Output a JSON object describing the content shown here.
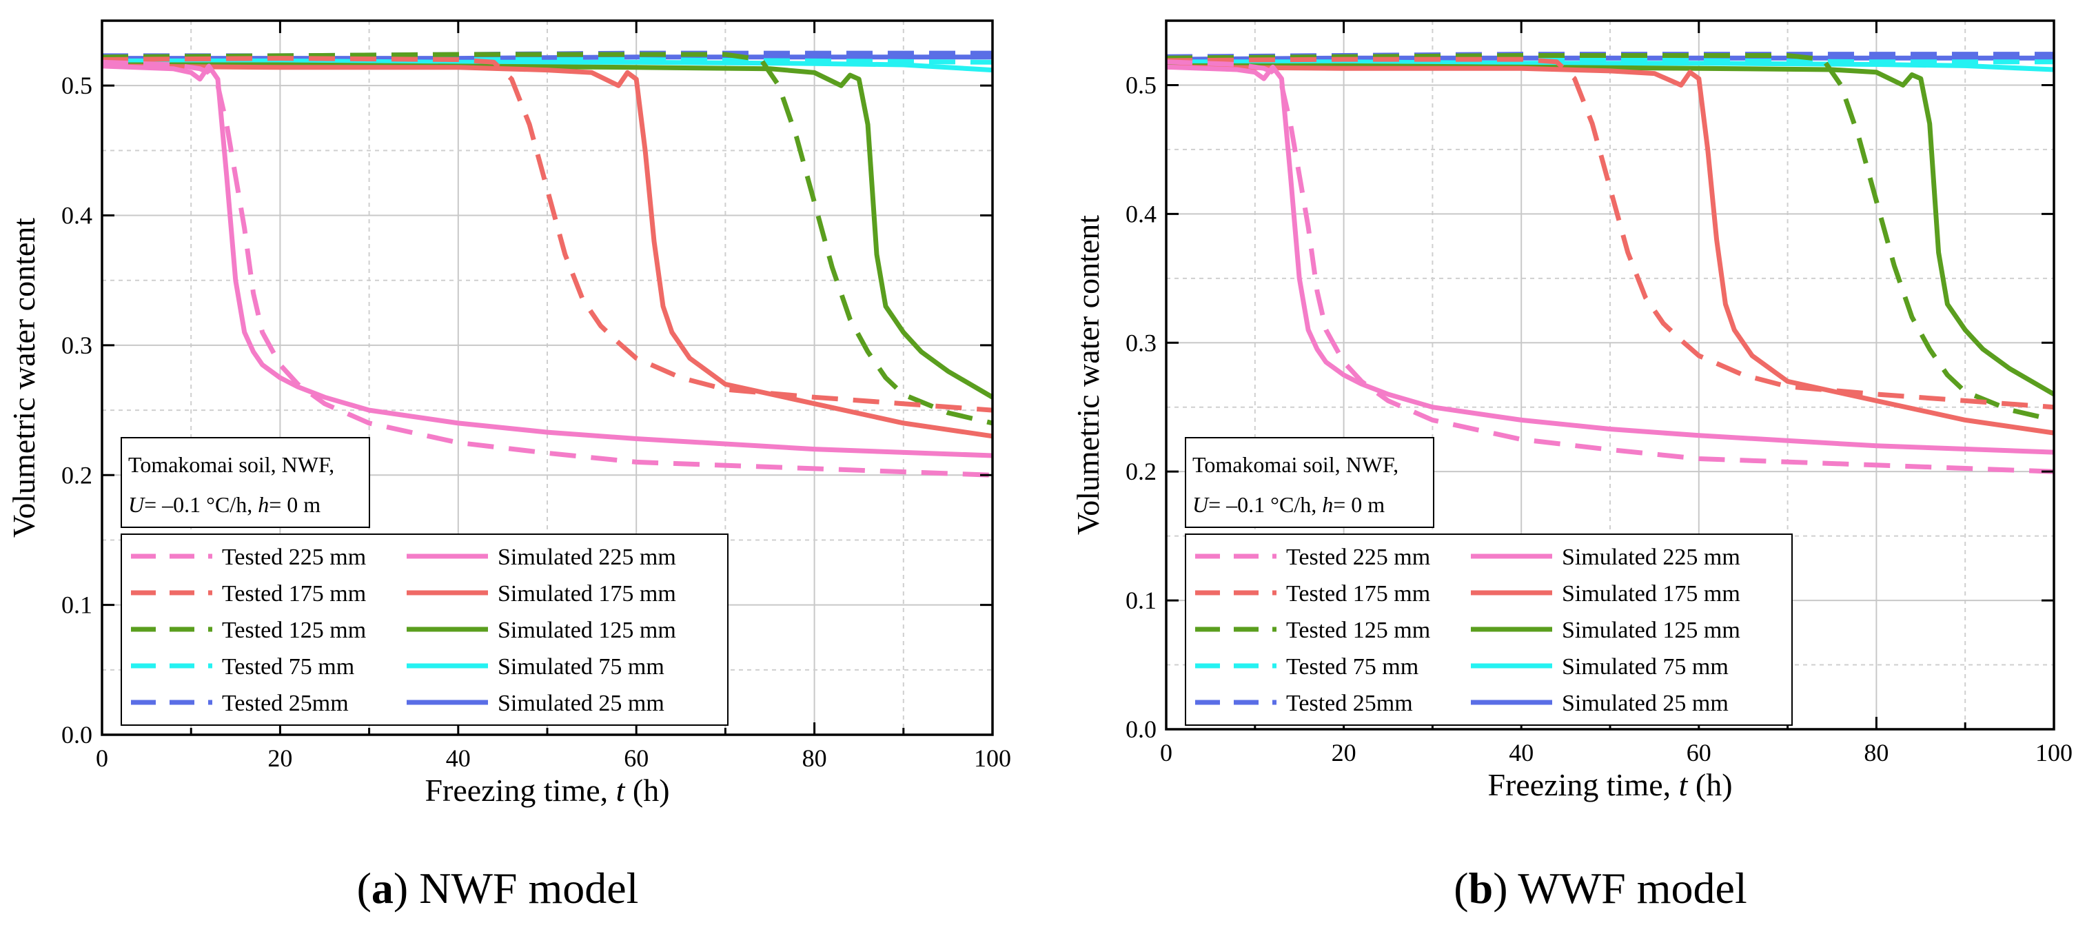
{
  "colors": {
    "pink": "#f47cc8",
    "red": "#ef6a66",
    "green": "#5a9e1e",
    "cyan": "#25f2f2",
    "blue": "#5a6ee6"
  },
  "chart_data": [
    {
      "type": "line",
      "panel_prefix": "(",
      "panel_letter": "a",
      "panel_suffix": ") NWF model",
      "xlabel_main": "Freezing time, ",
      "xlabel_var": "t",
      "xlabel_unit": " (h)",
      "ylabel": "Volumetric water content",
      "xlim": [
        0,
        100
      ],
      "ylim": [
        0,
        0.55
      ],
      "xticks": [
        "0",
        "20",
        "40",
        "60",
        "80",
        "100"
      ],
      "yticks": [
        "0.0",
        "0.1",
        "0.2",
        "0.3",
        "0.4",
        "0.5"
      ],
      "grid": true,
      "annotation": {
        "line1": "Tomakomai soil, NWF,",
        "u_var": "U",
        "u_text": "= –0.1 °C/h, ",
        "h_var": "h",
        "h_text": "= 0 m"
      },
      "legend": [
        {
          "label": "Tested 225 mm",
          "color": "#f47cc8",
          "dash": true
        },
        {
          "label": "Simulated 225 mm",
          "color": "#f47cc8",
          "dash": false
        },
        {
          "label": "Tested 175 mm",
          "color": "#ef6a66",
          "dash": true
        },
        {
          "label": "Simulated 175 mm",
          "color": "#ef6a66",
          "dash": false
        },
        {
          "label": "Tested 125 mm",
          "color": "#5a9e1e",
          "dash": true
        },
        {
          "label": "Simulated 125 mm",
          "color": "#5a9e1e",
          "dash": false
        },
        {
          "label": "Tested 75 mm",
          "color": "#25f2f2",
          "dash": true
        },
        {
          "label": "Simulated 75 mm",
          "color": "#25f2f2",
          "dash": false
        },
        {
          "label": "Tested 25mm",
          "color": "#5a6ee6",
          "dash": true
        },
        {
          "label": "Simulated 25 mm",
          "color": "#5a6ee6",
          "dash": false
        }
      ],
      "series": [
        {
          "name": "Tested 25mm",
          "color": "#5a6ee6",
          "dash": true,
          "x": [
            0,
            20,
            40,
            60,
            80,
            100
          ],
          "y": [
            0.523,
            0.523,
            0.524,
            0.525,
            0.525,
            0.525
          ]
        },
        {
          "name": "Simulated 25 mm",
          "color": "#5a6ee6",
          "dash": false,
          "x": [
            0,
            20,
            40,
            60,
            80,
            100
          ],
          "y": [
            0.521,
            0.521,
            0.521,
            0.522,
            0.522,
            0.522
          ]
        },
        {
          "name": "Tested 75 mm",
          "color": "#25f2f2",
          "dash": true,
          "x": [
            0,
            20,
            40,
            60,
            80,
            100
          ],
          "y": [
            0.521,
            0.521,
            0.52,
            0.52,
            0.519,
            0.518
          ]
        },
        {
          "name": "Simulated 75 mm",
          "color": "#25f2f2",
          "dash": false,
          "x": [
            0,
            20,
            40,
            60,
            80,
            90,
            100
          ],
          "y": [
            0.519,
            0.519,
            0.518,
            0.518,
            0.517,
            0.516,
            0.512
          ]
        },
        {
          "name": "Tested 125 mm",
          "color": "#5a9e1e",
          "dash": true,
          "x": [
            0,
            20,
            40,
            60,
            70,
            74,
            76,
            78,
            80,
            82,
            84,
            86,
            88,
            90,
            95,
            100
          ],
          "y": [
            0.522,
            0.523,
            0.524,
            0.524,
            0.524,
            0.52,
            0.5,
            0.46,
            0.41,
            0.36,
            0.32,
            0.295,
            0.275,
            0.262,
            0.248,
            0.24
          ]
        },
        {
          "name": "Simulated 125 mm",
          "color": "#5a9e1e",
          "dash": false,
          "x": [
            0,
            20,
            40,
            60,
            75,
            80,
            83,
            84,
            85,
            86,
            87,
            88,
            90,
            92,
            95,
            100
          ],
          "y": [
            0.516,
            0.516,
            0.515,
            0.514,
            0.513,
            0.51,
            0.5,
            0.508,
            0.505,
            0.47,
            0.37,
            0.33,
            0.31,
            0.295,
            0.28,
            0.26
          ]
        },
        {
          "name": "Tested 175 mm",
          "color": "#ef6a66",
          "dash": true,
          "x": [
            0,
            20,
            40,
            44,
            46,
            48,
            50,
            52,
            54,
            56,
            58,
            60,
            65,
            70,
            80,
            90,
            100
          ],
          "y": [
            0.52,
            0.521,
            0.52,
            0.518,
            0.505,
            0.47,
            0.42,
            0.37,
            0.335,
            0.315,
            0.302,
            0.29,
            0.275,
            0.266,
            0.26,
            0.255,
            0.25
          ]
        },
        {
          "name": "Simulated 175 mm",
          "color": "#ef6a66",
          "dash": false,
          "x": [
            0,
            20,
            40,
            50,
            55,
            58,
            59,
            60,
            61,
            62,
            63,
            64,
            66,
            70,
            80,
            90,
            100
          ],
          "y": [
            0.515,
            0.514,
            0.514,
            0.512,
            0.51,
            0.5,
            0.51,
            0.505,
            0.45,
            0.38,
            0.33,
            0.31,
            0.29,
            0.27,
            0.255,
            0.24,
            0.23
          ]
        },
        {
          "name": "Tested 225 mm",
          "color": "#f47cc8",
          "dash": true,
          "x": [
            0,
            8,
            11,
            12,
            13,
            14,
            15,
            16,
            17,
            18,
            20,
            22,
            25,
            30,
            40,
            50,
            60,
            80,
            100
          ],
          "y": [
            0.518,
            0.516,
            0.513,
            0.51,
            0.5,
            0.47,
            0.43,
            0.39,
            0.34,
            0.31,
            0.285,
            0.27,
            0.255,
            0.24,
            0.225,
            0.217,
            0.21,
            0.205,
            0.2
          ]
        },
        {
          "name": "Simulated 225 mm",
          "color": "#f47cc8",
          "dash": false,
          "x": [
            0,
            8,
            10,
            11,
            12,
            13,
            14,
            15,
            16,
            17,
            18,
            20,
            22,
            25,
            30,
            40,
            50,
            60,
            80,
            100
          ],
          "y": [
            0.515,
            0.513,
            0.51,
            0.505,
            0.515,
            0.505,
            0.43,
            0.35,
            0.31,
            0.295,
            0.285,
            0.275,
            0.268,
            0.26,
            0.25,
            0.24,
            0.233,
            0.228,
            0.22,
            0.215
          ]
        }
      ]
    },
    {
      "type": "line",
      "panel_prefix": "(",
      "panel_letter": "b",
      "panel_suffix": ") WWF model",
      "xlabel_main": "Freezing time, ",
      "xlabel_var": "t",
      "xlabel_unit": " (h)",
      "ylabel": "Volumetric water content",
      "xlim": [
        0,
        100
      ],
      "ylim": [
        0,
        0.55
      ],
      "xticks": [
        "0",
        "20",
        "40",
        "60",
        "80",
        "100"
      ],
      "yticks": [
        "0.0",
        "0.1",
        "0.2",
        "0.3",
        "0.4",
        "0.5"
      ],
      "grid": true,
      "annotation": {
        "line1": "Tomakomai soil, NWF,",
        "u_var": "U",
        "u_text": "= –0.1 °C/h, ",
        "h_var": "h",
        "h_text": "= 0 m"
      },
      "legend": [
        {
          "label": "Tested 225 mm",
          "color": "#f47cc8",
          "dash": true
        },
        {
          "label": "Simulated 225 mm",
          "color": "#f47cc8",
          "dash": false
        },
        {
          "label": "Tested 175 mm",
          "color": "#ef6a66",
          "dash": true
        },
        {
          "label": "Simulated 175 mm",
          "color": "#ef6a66",
          "dash": false
        },
        {
          "label": "Tested 125 mm",
          "color": "#5a9e1e",
          "dash": true
        },
        {
          "label": "Simulated 125 mm",
          "color": "#5a9e1e",
          "dash": false
        },
        {
          "label": "Tested 75 mm",
          "color": "#25f2f2",
          "dash": true
        },
        {
          "label": "Simulated 75 mm",
          "color": "#25f2f2",
          "dash": false
        },
        {
          "label": "Tested 25mm",
          "color": "#5a6ee6",
          "dash": true
        },
        {
          "label": "Simulated 25 mm",
          "color": "#5a6ee6",
          "dash": false
        }
      ],
      "series": [
        {
          "name": "Tested 25mm",
          "color": "#5a6ee6",
          "dash": true,
          "x": [
            0,
            20,
            40,
            60,
            80,
            100
          ],
          "y": [
            0.522,
            0.523,
            0.524,
            0.524,
            0.524,
            0.524
          ]
        },
        {
          "name": "Simulated 25 mm",
          "color": "#5a6ee6",
          "dash": false,
          "x": [
            0,
            20,
            40,
            60,
            80,
            100
          ],
          "y": [
            0.52,
            0.521,
            0.521,
            0.521,
            0.521,
            0.521
          ]
        },
        {
          "name": "Tested 75 mm",
          "color": "#25f2f2",
          "dash": true,
          "x": [
            0,
            20,
            40,
            60,
            80,
            100
          ],
          "y": [
            0.52,
            0.52,
            0.52,
            0.519,
            0.518,
            0.518
          ]
        },
        {
          "name": "Simulated 75 mm",
          "color": "#25f2f2",
          "dash": false,
          "x": [
            0,
            20,
            40,
            60,
            80,
            90,
            100
          ],
          "y": [
            0.518,
            0.518,
            0.517,
            0.517,
            0.516,
            0.515,
            0.512
          ]
        },
        {
          "name": "Tested 125 mm",
          "color": "#5a9e1e",
          "dash": true,
          "x": [
            0,
            20,
            40,
            60,
            70,
            74,
            76,
            78,
            80,
            82,
            84,
            86,
            88,
            90,
            95,
            100
          ],
          "y": [
            0.521,
            0.522,
            0.523,
            0.523,
            0.523,
            0.52,
            0.5,
            0.46,
            0.41,
            0.36,
            0.32,
            0.295,
            0.275,
            0.262,
            0.248,
            0.24
          ]
        },
        {
          "name": "Simulated 125 mm",
          "color": "#5a9e1e",
          "dash": false,
          "x": [
            0,
            20,
            40,
            60,
            75,
            80,
            83,
            84,
            85,
            86,
            87,
            88,
            90,
            92,
            95,
            100
          ],
          "y": [
            0.515,
            0.515,
            0.514,
            0.513,
            0.512,
            0.51,
            0.5,
            0.508,
            0.505,
            0.47,
            0.37,
            0.33,
            0.31,
            0.295,
            0.28,
            0.26
          ]
        },
        {
          "name": "Tested 175 mm",
          "color": "#ef6a66",
          "dash": true,
          "x": [
            0,
            20,
            40,
            44,
            46,
            48,
            50,
            52,
            54,
            56,
            58,
            60,
            65,
            70,
            80,
            90,
            100
          ],
          "y": [
            0.519,
            0.52,
            0.52,
            0.518,
            0.505,
            0.47,
            0.42,
            0.37,
            0.335,
            0.315,
            0.302,
            0.29,
            0.275,
            0.266,
            0.26,
            0.255,
            0.25
          ]
        },
        {
          "name": "Simulated 175 mm",
          "color": "#ef6a66",
          "dash": false,
          "x": [
            0,
            20,
            40,
            50,
            55,
            58,
            59,
            60,
            61,
            62,
            63,
            64,
            66,
            70,
            80,
            90,
            100
          ],
          "y": [
            0.514,
            0.513,
            0.513,
            0.511,
            0.509,
            0.5,
            0.51,
            0.505,
            0.45,
            0.38,
            0.33,
            0.31,
            0.29,
            0.27,
            0.255,
            0.24,
            0.23
          ]
        },
        {
          "name": "Tested 225 mm",
          "color": "#f47cc8",
          "dash": true,
          "x": [
            0,
            8,
            11,
            12,
            13,
            14,
            15,
            16,
            17,
            18,
            20,
            22,
            25,
            30,
            40,
            50,
            60,
            80,
            100
          ],
          "y": [
            0.518,
            0.516,
            0.513,
            0.51,
            0.5,
            0.47,
            0.43,
            0.39,
            0.34,
            0.31,
            0.285,
            0.27,
            0.255,
            0.24,
            0.225,
            0.217,
            0.21,
            0.205,
            0.2
          ]
        },
        {
          "name": "Simulated 225 mm",
          "color": "#f47cc8",
          "dash": false,
          "x": [
            0,
            8,
            10,
            11,
            12,
            13,
            14,
            15,
            16,
            17,
            18,
            20,
            22,
            25,
            30,
            40,
            50,
            60,
            80,
            100
          ],
          "y": [
            0.514,
            0.512,
            0.51,
            0.505,
            0.514,
            0.505,
            0.43,
            0.35,
            0.31,
            0.295,
            0.285,
            0.275,
            0.268,
            0.26,
            0.25,
            0.24,
            0.233,
            0.228,
            0.22,
            0.215
          ]
        }
      ]
    }
  ]
}
